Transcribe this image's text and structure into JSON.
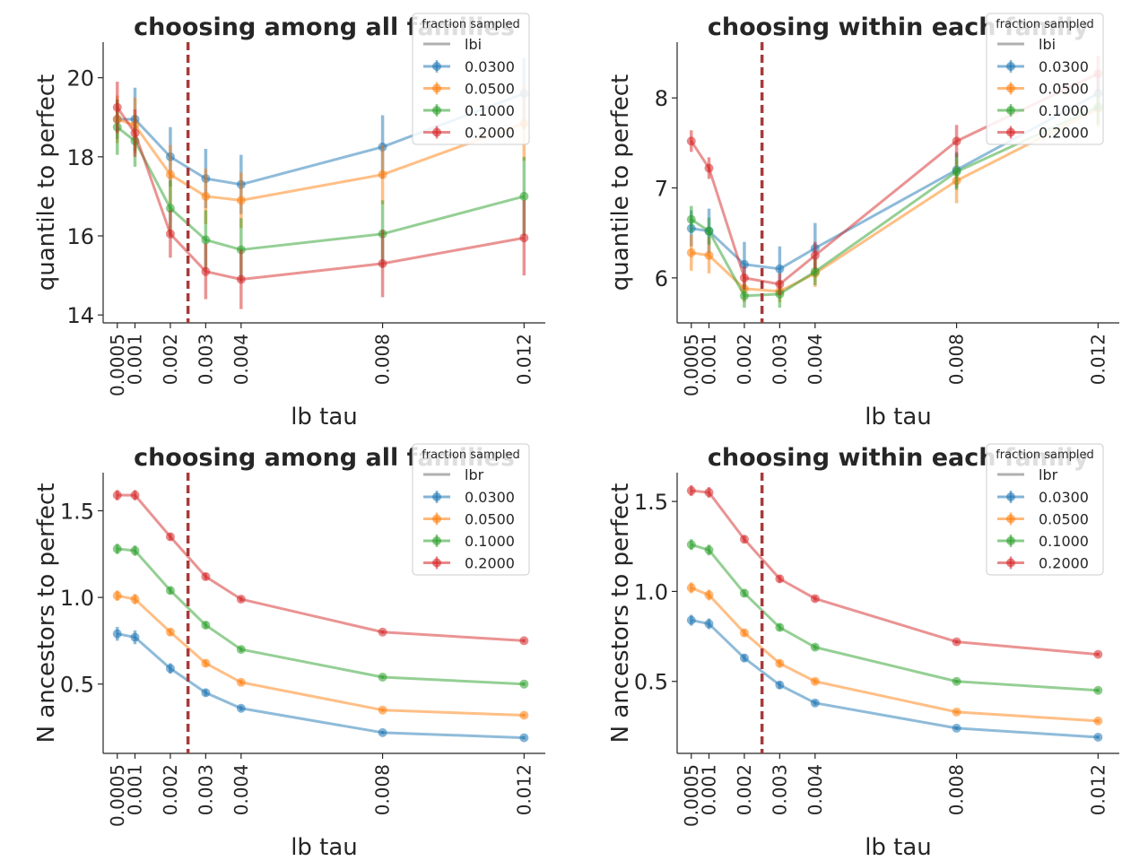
{
  "chart_data": [
    {
      "type": "line",
      "title": "choosing among all families",
      "xlabel": "lb tau",
      "ylabel": "quantile to perfect",
      "x": [
        0.0005,
        0.001,
        0.002,
        0.003,
        0.004,
        0.008,
        0.012
      ],
      "x_tick_labels": [
        "0.0005",
        "0.001",
        "0.002",
        "0.003",
        "0.004",
        "0.008",
        "0.012"
      ],
      "xlim": [
        0.0001,
        0.0126
      ],
      "ylim": [
        13.8,
        20.9
      ],
      "y_ticks": [
        14,
        16,
        18,
        20
      ],
      "y_tick_labels": [
        "14",
        "16",
        "18",
        "20"
      ],
      "reference_line": {
        "x": 0.0025,
        "style": "dashed",
        "color": "#a83a3a"
      },
      "legend": {
        "title": "fraction sampled",
        "placement": "top-right",
        "metric_label": "lbi"
      },
      "series": [
        {
          "name": "0.0300",
          "color": "#1f77b4",
          "values": [
            18.95,
            18.95,
            18.0,
            17.45,
            17.3,
            18.25,
            19.6
          ],
          "errors": [
            0.5,
            0.8,
            0.75,
            0.75,
            0.75,
            0.8,
            0.9
          ]
        },
        {
          "name": "0.0500",
          "color": "#ff7f0e",
          "values": [
            18.95,
            18.8,
            17.55,
            17.0,
            16.9,
            17.55,
            18.85
          ],
          "errors": [
            0.6,
            0.7,
            0.75,
            0.7,
            0.7,
            0.75,
            0.95
          ]
        },
        {
          "name": "0.1000",
          "color": "#2ca02c",
          "values": [
            18.75,
            18.4,
            16.7,
            15.9,
            15.65,
            16.05,
            17.0
          ],
          "errors": [
            0.7,
            0.65,
            0.7,
            0.75,
            0.8,
            0.85,
            1.0
          ]
        },
        {
          "name": "0.2000",
          "color": "#d62728",
          "values": [
            19.25,
            18.6,
            16.05,
            15.1,
            14.9,
            15.3,
            15.95
          ],
          "errors": [
            0.65,
            0.6,
            0.6,
            0.7,
            0.75,
            0.85,
            0.95
          ]
        }
      ]
    },
    {
      "type": "line",
      "title": "choosing within each family",
      "xlabel": "lb tau",
      "ylabel": "quantile to perfect",
      "x": [
        0.0005,
        0.001,
        0.002,
        0.003,
        0.004,
        0.008,
        0.012
      ],
      "x_tick_labels": [
        "0.0005",
        "0.001",
        "0.002",
        "0.003",
        "0.004",
        "0.008",
        "0.012"
      ],
      "xlim": [
        0.0001,
        0.0126
      ],
      "ylim": [
        5.5,
        8.62
      ],
      "y_ticks": [
        6,
        7,
        8
      ],
      "y_tick_labels": [
        "6",
        "7",
        "8"
      ],
      "reference_line": {
        "x": 0.0025,
        "style": "dashed",
        "color": "#a83a3a"
      },
      "legend": {
        "title": "fraction sampled",
        "placement": "top-right",
        "metric_label": "lbi"
      },
      "series": [
        {
          "name": "0.0300",
          "color": "#1f77b4",
          "values": [
            6.55,
            6.52,
            6.15,
            6.1,
            6.33,
            7.2,
            8.05
          ],
          "errors": [
            0.2,
            0.25,
            0.25,
            0.25,
            0.28,
            0.2,
            0.2
          ]
        },
        {
          "name": "0.0500",
          "color": "#ff7f0e",
          "values": [
            6.28,
            6.25,
            5.88,
            5.85,
            6.05,
            7.08,
            7.88
          ],
          "errors": [
            0.2,
            0.2,
            0.15,
            0.12,
            0.15,
            0.25,
            0.2
          ]
        },
        {
          "name": "0.1000",
          "color": "#2ca02c",
          "values": [
            6.65,
            6.52,
            5.8,
            5.82,
            6.07,
            7.18,
            7.9
          ],
          "errors": [
            0.15,
            0.15,
            0.13,
            0.15,
            0.15,
            0.2,
            0.2
          ]
        },
        {
          "name": "0.2000",
          "color": "#d62728",
          "values": [
            7.52,
            7.22,
            6.0,
            5.93,
            6.25,
            7.52,
            8.27
          ],
          "errors": [
            0.12,
            0.12,
            0.13,
            0.12,
            0.15,
            0.18,
            0.2
          ]
        }
      ]
    },
    {
      "type": "line",
      "title": "choosing among all families",
      "xlabel": "lb tau",
      "ylabel": "N ancestors to perfect",
      "x": [
        0.0005,
        0.001,
        0.002,
        0.003,
        0.004,
        0.008,
        0.012
      ],
      "x_tick_labels": [
        "0.0005",
        "0.001",
        "0.002",
        "0.003",
        "0.004",
        "0.008",
        "0.012"
      ],
      "xlim": [
        0.0001,
        0.0126
      ],
      "ylim": [
        0.1,
        1.72
      ],
      "y_ticks": [
        0.5,
        1.0,
        1.5
      ],
      "y_tick_labels": [
        "0.5",
        "1.0",
        "1.5"
      ],
      "reference_line": {
        "x": 0.0025,
        "style": "dashed",
        "color": "#a83a3a"
      },
      "legend": {
        "title": "fraction sampled",
        "placement": "top-right",
        "metric_label": "lbr"
      },
      "series": [
        {
          "name": "0.0300",
          "color": "#1f77b4",
          "values": [
            0.79,
            0.77,
            0.59,
            0.45,
            0.36,
            0.22,
            0.19
          ],
          "errors": [
            0.04,
            0.04,
            0.03,
            0.02,
            0.015,
            0.01,
            0.01
          ]
        },
        {
          "name": "0.0500",
          "color": "#ff7f0e",
          "values": [
            1.01,
            0.99,
            0.8,
            0.62,
            0.51,
            0.35,
            0.32
          ],
          "errors": [
            0.03,
            0.03,
            0.02,
            0.02,
            0.015,
            0.01,
            0.01
          ]
        },
        {
          "name": "0.1000",
          "color": "#2ca02c",
          "values": [
            1.28,
            1.27,
            1.04,
            0.84,
            0.7,
            0.54,
            0.5
          ],
          "errors": [
            0.03,
            0.03,
            0.02,
            0.02,
            0.015,
            0.01,
            0.01
          ]
        },
        {
          "name": "0.2000",
          "color": "#d62728",
          "values": [
            1.59,
            1.59,
            1.35,
            1.12,
            0.99,
            0.8,
            0.75
          ],
          "errors": [
            0.03,
            0.03,
            0.02,
            0.02,
            0.015,
            0.01,
            0.01
          ]
        }
      ]
    },
    {
      "type": "line",
      "title": "choosing within each family",
      "xlabel": "lb tau",
      "ylabel": "N ancestors to perfect",
      "x": [
        0.0005,
        0.001,
        0.002,
        0.003,
        0.004,
        0.008,
        0.012
      ],
      "x_tick_labels": [
        "0.0005",
        "0.001",
        "0.002",
        "0.003",
        "0.004",
        "0.008",
        "0.012"
      ],
      "xlim": [
        0.0001,
        0.0126
      ],
      "ylim": [
        0.1,
        1.66
      ],
      "y_ticks": [
        0.5,
        1.0,
        1.5
      ],
      "y_tick_labels": [
        "0.5",
        "1.0",
        "1.5"
      ],
      "reference_line": {
        "x": 0.0025,
        "style": "dashed",
        "color": "#a83a3a"
      },
      "legend": {
        "title": "fraction sampled",
        "placement": "top-right",
        "metric_label": "lbr"
      },
      "series": [
        {
          "name": "0.0300",
          "color": "#1f77b4",
          "values": [
            0.84,
            0.82,
            0.63,
            0.48,
            0.38,
            0.24,
            0.19
          ],
          "errors": [
            0.03,
            0.03,
            0.02,
            0.02,
            0.015,
            0.01,
            0.01
          ]
        },
        {
          "name": "0.0500",
          "color": "#ff7f0e",
          "values": [
            1.02,
            0.98,
            0.77,
            0.6,
            0.5,
            0.33,
            0.28
          ],
          "errors": [
            0.03,
            0.03,
            0.02,
            0.02,
            0.015,
            0.01,
            0.01
          ]
        },
        {
          "name": "0.1000",
          "color": "#2ca02c",
          "values": [
            1.26,
            1.23,
            0.99,
            0.8,
            0.69,
            0.5,
            0.45
          ],
          "errors": [
            0.03,
            0.03,
            0.02,
            0.02,
            0.015,
            0.01,
            0.01
          ]
        },
        {
          "name": "0.2000",
          "color": "#d62728",
          "values": [
            1.56,
            1.55,
            1.29,
            1.07,
            0.96,
            0.72,
            0.65
          ],
          "errors": [
            0.03,
            0.03,
            0.02,
            0.02,
            0.015,
            0.01,
            0.01
          ]
        }
      ]
    }
  ]
}
